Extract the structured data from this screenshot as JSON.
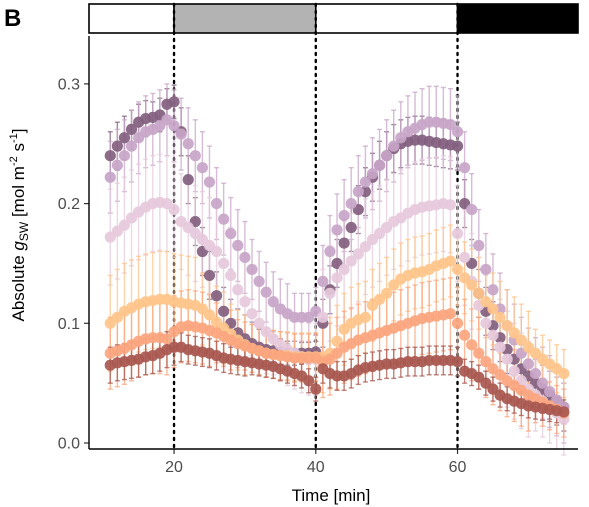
{
  "panel_label": "B",
  "chart_data": {
    "type": "scatter",
    "xlabel": "Time [min]",
    "ylabel": {
      "prefix": "Absolute ",
      "var": "g",
      "sub": "SW",
      "units_open": " [mol m",
      "sup1": "-2",
      "units_mid": " s",
      "sup2": "-1",
      "units_close": "]"
    },
    "xlim": [
      8,
      77
    ],
    "ylim": [
      -0.005,
      0.34
    ],
    "xticks": [
      20,
      40,
      60
    ],
    "xtick_labels": [
      "20",
      "40",
      "60"
    ],
    "yticks": [
      0.0,
      0.1,
      0.2,
      0.3
    ],
    "ytick_labels": [
      "0.0",
      "0.1",
      "0.2",
      "0.3"
    ],
    "vlines": [
      20,
      40,
      60
    ],
    "light_regime_bar": [
      {
        "x0": 8,
        "x1": 20,
        "color": "#ffffff"
      },
      {
        "x0": 20,
        "x1": 40,
        "color": "#b3b3b3"
      },
      {
        "x0": 40,
        "x1": 60,
        "color": "#ffffff"
      },
      {
        "x0": 60,
        "x1": 77,
        "color": "#000000"
      }
    ],
    "grid": false,
    "legend": "none",
    "x": [
      11,
      12,
      13,
      14,
      15,
      16,
      17,
      18,
      19,
      20,
      21,
      22,
      23,
      24,
      25,
      26,
      27,
      28,
      29,
      30,
      31,
      32,
      33,
      34,
      35,
      36,
      37,
      38,
      39,
      40,
      41,
      42,
      43,
      44,
      45,
      46,
      47,
      48,
      49,
      50,
      51,
      52,
      53,
      54,
      55,
      56,
      57,
      58,
      59,
      60,
      61,
      62,
      63,
      64,
      65,
      66,
      67,
      68,
      69,
      70,
      71,
      72,
      73,
      74,
      75
    ],
    "series": [
      {
        "color": "#82607e",
        "errors": [
          0.02,
          0.02,
          0.018,
          0.016,
          0.015,
          0.015,
          0.013,
          0.014,
          0.013,
          0.014,
          0.02,
          0.02,
          0.02,
          0.02,
          0.02,
          0.02,
          0.02,
          0.02,
          0.02,
          0.02,
          0.018,
          0.015,
          0.014,
          0.012,
          0.011,
          0.01,
          0.01,
          0.009,
          0.009,
          0.009,
          0.02,
          0.02,
          0.02,
          0.02,
          0.02,
          0.02,
          0.02,
          0.02,
          0.02,
          0.02,
          0.02,
          0.02,
          0.02,
          0.02,
          0.02,
          0.02,
          0.02,
          0.02,
          0.02,
          0.02,
          0.02,
          0.02,
          0.02,
          0.02,
          0.02,
          0.02,
          0.02,
          0.02,
          0.02,
          0.02,
          0.02,
          0.02,
          0.02,
          0.02,
          0.02
        ],
        "values": [
          0.24,
          0.248,
          0.255,
          0.262,
          0.268,
          0.271,
          0.272,
          0.274,
          0.283,
          0.285,
          0.26,
          0.22,
          0.185,
          0.16,
          0.14,
          0.123,
          0.11,
          0.1,
          0.092,
          0.087,
          0.083,
          0.08,
          0.078,
          0.077,
          0.076,
          0.075,
          0.075,
          0.075,
          0.075,
          0.076,
          0.1,
          0.128,
          0.15,
          0.167,
          0.18,
          0.195,
          0.21,
          0.222,
          0.232,
          0.24,
          0.246,
          0.25,
          0.252,
          0.253,
          0.253,
          0.252,
          0.251,
          0.25,
          0.249,
          0.248,
          0.2,
          0.15,
          0.125,
          0.11,
          0.098,
          0.088,
          0.078,
          0.07,
          0.062,
          0.056,
          0.05,
          0.045,
          0.04,
          0.035,
          0.03
        ]
      },
      {
        "color": "#c8a5c8",
        "errors": [
          0.03,
          0.03,
          0.03,
          0.03,
          0.03,
          0.03,
          0.03,
          0.03,
          0.03,
          0.03,
          0.03,
          0.03,
          0.03,
          0.03,
          0.03,
          0.03,
          0.03,
          0.03,
          0.03,
          0.03,
          0.025,
          0.025,
          0.025,
          0.025,
          0.025,
          0.025,
          0.02,
          0.02,
          0.02,
          0.02,
          0.03,
          0.03,
          0.03,
          0.03,
          0.03,
          0.03,
          0.03,
          0.03,
          0.03,
          0.03,
          0.03,
          0.03,
          0.03,
          0.03,
          0.03,
          0.03,
          0.03,
          0.03,
          0.03,
          0.03,
          0.03,
          0.03,
          0.03,
          0.03,
          0.03,
          0.03,
          0.03,
          0.03,
          0.03,
          0.03,
          0.03,
          0.03,
          0.03,
          0.03,
          0.03
        ],
        "values": [
          0.222,
          0.232,
          0.24,
          0.248,
          0.255,
          0.26,
          0.262,
          0.265,
          0.27,
          0.265,
          0.258,
          0.25,
          0.24,
          0.23,
          0.218,
          0.2,
          0.187,
          0.175,
          0.165,
          0.155,
          0.145,
          0.135,
          0.126,
          0.118,
          0.112,
          0.108,
          0.105,
          0.105,
          0.105,
          0.11,
          0.135,
          0.16,
          0.178,
          0.19,
          0.2,
          0.21,
          0.218,
          0.225,
          0.232,
          0.24,
          0.248,
          0.255,
          0.26,
          0.263,
          0.266,
          0.268,
          0.268,
          0.267,
          0.266,
          0.26,
          0.23,
          0.195,
          0.165,
          0.145,
          0.128,
          0.112,
          0.098,
          0.086,
          0.075,
          0.066,
          0.058,
          0.05,
          0.043,
          0.036,
          0.03
        ]
      },
      {
        "color": "#e6c9dc",
        "errors": [
          0.04,
          0.04,
          0.04,
          0.04,
          0.04,
          0.04,
          0.04,
          0.04,
          0.04,
          0.04,
          0.04,
          0.04,
          0.04,
          0.04,
          0.04,
          0.04,
          0.04,
          0.04,
          0.04,
          0.04,
          0.035,
          0.035,
          0.035,
          0.03,
          0.03,
          0.03,
          0.03,
          0.03,
          0.03,
          0.03,
          0.04,
          0.04,
          0.04,
          0.04,
          0.04,
          0.04,
          0.04,
          0.04,
          0.04,
          0.04,
          0.04,
          0.04,
          0.04,
          0.04,
          0.04,
          0.04,
          0.04,
          0.04,
          0.04,
          0.04,
          0.04,
          0.04,
          0.04,
          0.04,
          0.04,
          0.04,
          0.04,
          0.04,
          0.04,
          0.04,
          0.03,
          0.03,
          0.03,
          0.03,
          0.03
        ],
        "values": [
          0.172,
          0.177,
          0.182,
          0.188,
          0.193,
          0.197,
          0.2,
          0.201,
          0.2,
          0.195,
          0.185,
          0.18,
          0.175,
          0.17,
          0.165,
          0.16,
          0.15,
          0.14,
          0.128,
          0.118,
          0.108,
          0.1,
          0.093,
          0.087,
          0.082,
          0.078,
          0.075,
          0.072,
          0.07,
          0.07,
          0.105,
          0.125,
          0.138,
          0.145,
          0.152,
          0.158,
          0.164,
          0.17,
          0.175,
          0.18,
          0.185,
          0.188,
          0.192,
          0.195,
          0.197,
          0.198,
          0.199,
          0.2,
          0.199,
          0.175,
          0.155,
          0.135,
          0.115,
          0.1,
          0.09,
          0.08,
          0.07,
          0.06,
          0.052,
          0.045,
          0.04,
          0.035,
          0.03,
          0.025,
          0.02
        ]
      },
      {
        "color": "#ffc48a",
        "errors": [
          0.04,
          0.04,
          0.04,
          0.04,
          0.04,
          0.04,
          0.04,
          0.04,
          0.04,
          0.04,
          0.04,
          0.04,
          0.04,
          0.03,
          0.03,
          0.03,
          0.03,
          0.025,
          0.025,
          0.025,
          0.02,
          0.02,
          0.02,
          0.02,
          0.02,
          0.02,
          0.02,
          0.02,
          0.02,
          0.02,
          0.03,
          0.03,
          0.03,
          0.03,
          0.03,
          0.03,
          0.03,
          0.03,
          0.03,
          0.03,
          0.03,
          0.03,
          0.03,
          0.03,
          0.03,
          0.03,
          0.03,
          0.03,
          0.03,
          0.03,
          0.03,
          0.03,
          0.03,
          0.03,
          0.03,
          0.03,
          0.03,
          0.03,
          0.03,
          0.03,
          0.02,
          0.02,
          0.02,
          0.02,
          0.02
        ],
        "values": [
          0.1,
          0.105,
          0.11,
          0.113,
          0.116,
          0.118,
          0.119,
          0.12,
          0.12,
          0.118,
          0.117,
          0.116,
          0.115,
          0.112,
          0.107,
          0.101,
          0.096,
          0.091,
          0.086,
          0.082,
          0.079,
          0.077,
          0.075,
          0.074,
          0.073,
          0.073,
          0.072,
          0.072,
          0.072,
          0.072,
          0.072,
          0.075,
          0.085,
          0.095,
          0.1,
          0.103,
          0.105,
          0.115,
          0.12,
          0.125,
          0.132,
          0.137,
          0.14,
          0.142,
          0.143,
          0.145,
          0.148,
          0.15,
          0.152,
          0.145,
          0.138,
          0.132,
          0.125,
          0.118,
          0.112,
          0.105,
          0.098,
          0.092,
          0.086,
          0.08,
          0.075,
          0.07,
          0.066,
          0.062,
          0.058
        ]
      },
      {
        "color": "#fba57e",
        "errors": [
          0.03,
          0.03,
          0.03,
          0.03,
          0.03,
          0.03,
          0.03,
          0.03,
          0.03,
          0.03,
          0.03,
          0.03,
          0.03,
          0.03,
          0.03,
          0.025,
          0.025,
          0.025,
          0.02,
          0.02,
          0.02,
          0.02,
          0.02,
          0.02,
          0.02,
          0.02,
          0.02,
          0.02,
          0.02,
          0.02,
          0.03,
          0.03,
          0.03,
          0.03,
          0.03,
          0.03,
          0.03,
          0.03,
          0.03,
          0.03,
          0.03,
          0.03,
          0.03,
          0.03,
          0.03,
          0.03,
          0.03,
          0.03,
          0.03,
          0.03,
          0.03,
          0.03,
          0.03,
          0.03,
          0.03,
          0.03,
          0.03,
          0.03,
          0.03,
          0.03,
          0.02,
          0.02,
          0.02,
          0.02,
          0.02
        ],
        "values": [
          0.075,
          0.077,
          0.079,
          0.082,
          0.085,
          0.087,
          0.088,
          0.088,
          0.087,
          0.093,
          0.097,
          0.098,
          0.097,
          0.096,
          0.094,
          0.092,
          0.089,
          0.086,
          0.083,
          0.081,
          0.079,
          0.077,
          0.075,
          0.074,
          0.073,
          0.072,
          0.071,
          0.071,
          0.071,
          0.071,
          0.068,
          0.07,
          0.075,
          0.08,
          0.083,
          0.086,
          0.088,
          0.09,
          0.092,
          0.094,
          0.096,
          0.098,
          0.1,
          0.102,
          0.104,
          0.105,
          0.106,
          0.107,
          0.108,
          0.1,
          0.09,
          0.082,
          0.075,
          0.068,
          0.062,
          0.057,
          0.052,
          0.048,
          0.044,
          0.04,
          0.037,
          0.034,
          0.031,
          0.028,
          0.025
        ]
      },
      {
        "color": "#a8584f",
        "errors": [
          0.015,
          0.015,
          0.015,
          0.015,
          0.015,
          0.015,
          0.015,
          0.015,
          0.015,
          0.015,
          0.012,
          0.012,
          0.012,
          0.012,
          0.012,
          0.012,
          0.012,
          0.012,
          0.012,
          0.012,
          0.01,
          0.01,
          0.01,
          0.01,
          0.01,
          0.01,
          0.01,
          0.01,
          0.01,
          0.01,
          0.012,
          0.012,
          0.012,
          0.012,
          0.012,
          0.012,
          0.012,
          0.012,
          0.012,
          0.012,
          0.012,
          0.012,
          0.012,
          0.012,
          0.012,
          0.012,
          0.012,
          0.012,
          0.012,
          0.012,
          0.01,
          0.01,
          0.01,
          0.01,
          0.01,
          0.01,
          0.01,
          0.01,
          0.01,
          0.01,
          0.01,
          0.01,
          0.01,
          0.01,
          0.01
        ],
        "values": [
          0.065,
          0.067,
          0.068,
          0.069,
          0.07,
          0.072,
          0.073,
          0.075,
          0.078,
          0.08,
          0.08,
          0.078,
          0.077,
          0.076,
          0.075,
          0.073,
          0.071,
          0.07,
          0.069,
          0.068,
          0.067,
          0.066,
          0.065,
          0.064,
          0.062,
          0.06,
          0.058,
          0.056,
          0.052,
          0.045,
          0.062,
          0.058,
          0.056,
          0.056,
          0.058,
          0.061,
          0.063,
          0.064,
          0.065,
          0.066,
          0.066,
          0.067,
          0.068,
          0.068,
          0.068,
          0.069,
          0.069,
          0.069,
          0.069,
          0.068,
          0.06,
          0.058,
          0.055,
          0.05,
          0.045,
          0.04,
          0.037,
          0.035,
          0.033,
          0.031,
          0.03,
          0.029,
          0.028,
          0.027,
          0.026
        ]
      }
    ]
  }
}
